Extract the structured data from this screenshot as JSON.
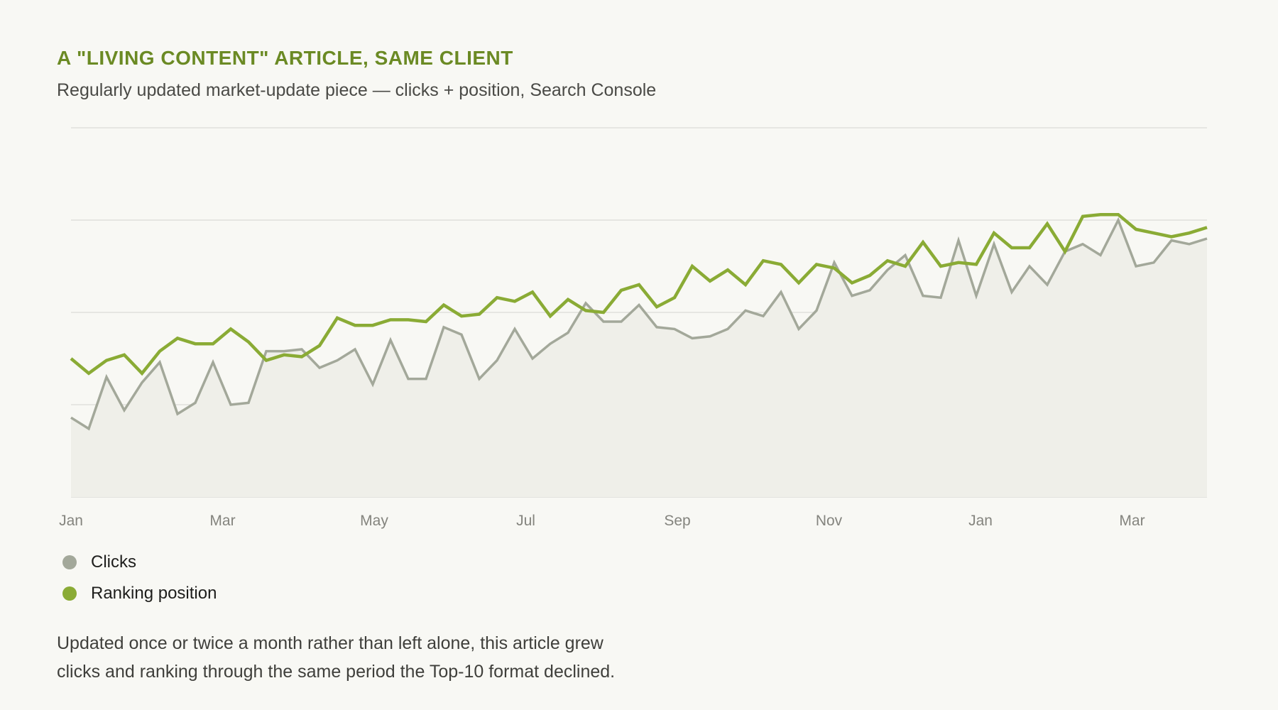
{
  "title": "A \"LIVING CONTENT\" ARTICLE, SAME CLIENT",
  "subtitle": "Regularly updated market-update piece — clicks + position, Search Console",
  "note": {
    "line1": "Updated once or twice a month rather than left alone, this article grew",
    "line2": "clicks and ranking through the same period the Top-10 format declined."
  },
  "colors": {
    "accent": "#6b8a24",
    "clicks": "#a3a89a",
    "ranking": "#8aab35",
    "area_fill": "#efefe9",
    "grid": "#dcdcd6",
    "tick_text": "#84847e"
  },
  "chart_data": {
    "type": "line",
    "title": "A \"LIVING CONTENT\" ARTICLE, SAME CLIENT",
    "subtitle": "Regularly updated market-update piece — clicks + position, Search Console",
    "x_ticks": [
      "Jan",
      "Mar",
      "May",
      "Jul",
      "Sep",
      "Nov",
      "Jan",
      "Mar"
    ],
    "y_gridlines": 5,
    "y_axis_labels": "none",
    "legend_position": "bottom-left",
    "x_points": 65,
    "series": [
      {
        "name": "Clicks",
        "color": "#a3a89a",
        "fill": true,
        "values": [
          21.5,
          18.5,
          32.5,
          23.5,
          31.0,
          36.5,
          22.5,
          25.5,
          36.5,
          25.0,
          25.5,
          39.5,
          39.5,
          40.0,
          35.0,
          37.0,
          40.0,
          30.5,
          42.5,
          32.0,
          32.0,
          46.0,
          44.0,
          32.0,
          37.0,
          45.5,
          37.5,
          41.5,
          44.5,
          52.5,
          47.5,
          47.5,
          52.0,
          46.0,
          45.5,
          43.0,
          43.5,
          45.5,
          50.5,
          49.0,
          55.5,
          45.5,
          50.5,
          63.5,
          54.5,
          56.0,
          61.5,
          65.5,
          54.5,
          54.0,
          69.5,
          54.5,
          68.5,
          55.5,
          62.5,
          57.5,
          66.5,
          68.5,
          65.5,
          75.0,
          62.5,
          63.5,
          69.5,
          68.5,
          70.0
        ]
      },
      {
        "name": "Ranking position",
        "color": "#8aab35",
        "fill": false,
        "values": [
          37.5,
          33.5,
          37.0,
          38.5,
          33.5,
          39.5,
          43.0,
          41.5,
          41.5,
          45.5,
          42.0,
          37.0,
          38.5,
          38.0,
          41.0,
          48.5,
          46.5,
          46.5,
          48.0,
          48.0,
          47.5,
          52.0,
          49.0,
          49.5,
          54.0,
          53.0,
          55.5,
          49.0,
          53.5,
          50.5,
          50.0,
          56.0,
          57.5,
          51.5,
          54.0,
          62.5,
          58.5,
          61.5,
          57.5,
          64.0,
          63.0,
          58.0,
          63.0,
          62.0,
          58.0,
          60.0,
          64.0,
          62.5,
          69.0,
          62.5,
          63.5,
          63.0,
          71.5,
          67.5,
          67.5,
          74.0,
          66.5,
          76.0,
          76.5,
          76.5,
          72.5,
          71.5,
          70.5,
          71.5,
          73.0
        ]
      }
    ]
  }
}
